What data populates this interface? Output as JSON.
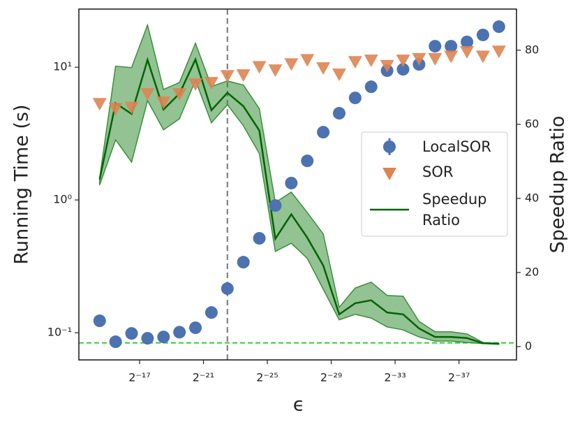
{
  "chart_data": {
    "type": "scatter",
    "xlabel": "ϵ",
    "ylabel": "Running Time (s)",
    "y2label": "Speedup Ratio",
    "x": [
      -14.5,
      -15.5,
      -16.5,
      -17.5,
      -18.5,
      -19.5,
      -20.5,
      -21.5,
      -22.5,
      -23.5,
      -24.5,
      -25.5,
      -26.5,
      -27.5,
      -28.5,
      -29.5,
      -30.5,
      -31.5,
      -32.5,
      -33.5,
      -34.5,
      -35.5,
      -36.5,
      -37.5,
      -38.5,
      -39.5
    ],
    "xlim": [
      -13.2,
      -40.6
    ],
    "xticks": [
      {
        "value": -17,
        "label": "2⁻¹⁷"
      },
      {
        "value": -21,
        "label": "2⁻²¹"
      },
      {
        "value": -25,
        "label": "2⁻²⁵"
      },
      {
        "value": -29,
        "label": "2⁻²⁹"
      },
      {
        "value": -33,
        "label": "2⁻³³"
      },
      {
        "value": -37,
        "label": "2⁻³⁷"
      }
    ],
    "ylim": [
      0.0624,
      27.4
    ],
    "yscale": "log",
    "yticks": [
      {
        "value": 0.1,
        "label": "10⁻¹"
      },
      {
        "value": 1,
        "label": "10⁰"
      },
      {
        "value": 10,
        "label": "10¹"
      }
    ],
    "y2lim": [
      -3.6,
      91.1
    ],
    "y2ticks": [
      0,
      20,
      40,
      60,
      80
    ],
    "vline": -22.5,
    "hline_y2": 1,
    "legend": "center right",
    "series": [
      {
        "name": "LocalSOR",
        "color": "#4c72b0",
        "marker": "circle",
        "values": [
          0.123,
          0.0855,
          0.0988,
          0.0908,
          0.093,
          0.101,
          0.109,
          0.142,
          0.215,
          0.34,
          0.514,
          0.908,
          1.34,
          1.97,
          3.24,
          4.5,
          5.87,
          7.12,
          9.42,
          9.64,
          10.5,
          14.4,
          14.4,
          15.5,
          17.5,
          20.2
        ]
      },
      {
        "name": "SOR",
        "color": "#dd8452",
        "marker": "triangle",
        "values": [
          5.32,
          4.89,
          4.99,
          6.31,
          5.46,
          6.31,
          7.48,
          7.66,
          8.64,
          8.76,
          10.1,
          9.53,
          10.6,
          11.4,
          9.88,
          8.86,
          11.0,
          11.3,
          10.3,
          11.3,
          11.6,
          11.6,
          12.1,
          13.1,
          12.1,
          13.2
        ]
      },
      {
        "name": "Speedup Ratio",
        "color": "#006400",
        "marker": "line",
        "axis": "y2",
        "band_color": "#3a8f3a",
        "values": [
          45.1,
          65.7,
          62.8,
          77.4,
          64,
          68.3,
          77.5,
          63.8,
          68.5,
          64.9,
          58.3,
          29.1,
          35.7,
          29.4,
          21.9,
          8.7,
          11.7,
          12.5,
          9.2,
          8.7,
          4.9,
          2.6,
          2.6,
          2.3,
          0.9,
          0.8
        ],
        "upper": [
          45.5,
          75.7,
          75.3,
          86.8,
          69.4,
          71.3,
          81.9,
          70.2,
          71.7,
          70.6,
          64.2,
          38.9,
          41.7,
          36.2,
          30.4,
          10.6,
          15.8,
          17.4,
          13.8,
          13.6,
          6.8,
          4,
          4,
          3.4,
          1.1,
          0.8
        ],
        "lower": [
          43.6,
          55.8,
          49.8,
          66.4,
          58.5,
          61.5,
          71.9,
          60.4,
          65.3,
          59.6,
          52.1,
          25.7,
          27.9,
          23.8,
          15.5,
          7.2,
          8.7,
          7.7,
          5.3,
          4.5,
          2.6,
          1.5,
          1.5,
          1.1,
          0.8,
          0.6
        ]
      }
    ]
  }
}
